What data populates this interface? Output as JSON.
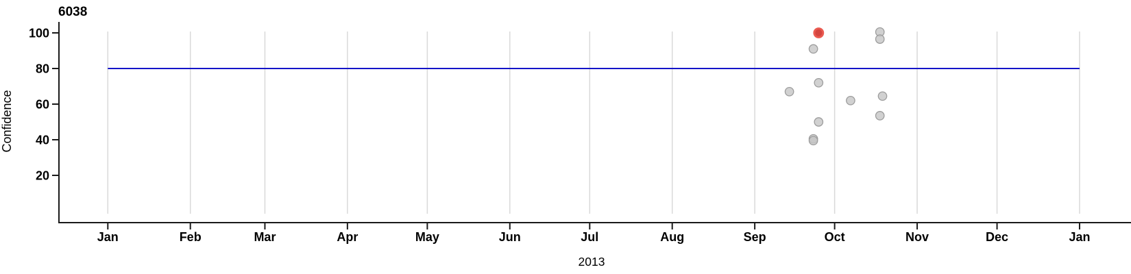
{
  "title": "6038",
  "colors": {
    "background": "#ffffff",
    "axis": "#1a1a1a",
    "gridline": "#d9d9d9",
    "reference_line": "#1414c8",
    "point_fill": "#c6c6c6",
    "point_stroke": "#9c9c9c",
    "highlight_fill": "#d23b35",
    "highlight_stroke": "#ea5a50",
    "text": "#000000"
  },
  "chart_data": {
    "type": "scatter",
    "title": "6038",
    "xlabel": "2013",
    "ylabel": "Confidence",
    "ylim": [
      0,
      105
    ],
    "x_range": [
      "2013-01-01",
      "2014-01-01"
    ],
    "grid": "vertical-month-gridlines-only",
    "legend": "none",
    "reference_line": {
      "y": 80,
      "x_start": "2013-01-01",
      "x_end": "2014-01-01"
    },
    "y_ticks": [
      100,
      80,
      60,
      40,
      20
    ],
    "x_tick_labels": [
      "Jan",
      "Feb",
      "Mar",
      "Apr",
      "May",
      "Jun",
      "Jul",
      "Aug",
      "Sep",
      "Oct",
      "Nov",
      "Dec",
      "Jan"
    ],
    "x_tick_days": [
      0,
      31,
      59,
      90,
      120,
      151,
      181,
      212,
      243,
      273,
      304,
      334,
      365
    ],
    "points": [
      {
        "date": "2013-09-14",
        "confidence": 67,
        "highlight": false
      },
      {
        "date": "2013-09-23",
        "confidence": 91,
        "highlight": false
      },
      {
        "date": "2013-09-23",
        "confidence": 40.5,
        "highlight": false
      },
      {
        "date": "2013-09-23",
        "confidence": 39.5,
        "highlight": false
      },
      {
        "date": "2013-09-25",
        "confidence": 72,
        "highlight": false
      },
      {
        "date": "2013-09-25",
        "confidence": 50,
        "highlight": false
      },
      {
        "date": "2013-10-07",
        "confidence": 62,
        "highlight": false
      },
      {
        "date": "2013-10-18",
        "confidence": 100.5,
        "highlight": false
      },
      {
        "date": "2013-10-18",
        "confidence": 96.5,
        "highlight": false
      },
      {
        "date": "2013-10-19",
        "confidence": 64.5,
        "highlight": false
      },
      {
        "date": "2013-10-18",
        "confidence": 53.5,
        "highlight": false
      },
      {
        "date": "2013-09-25",
        "confidence": 100,
        "highlight": true
      }
    ]
  }
}
